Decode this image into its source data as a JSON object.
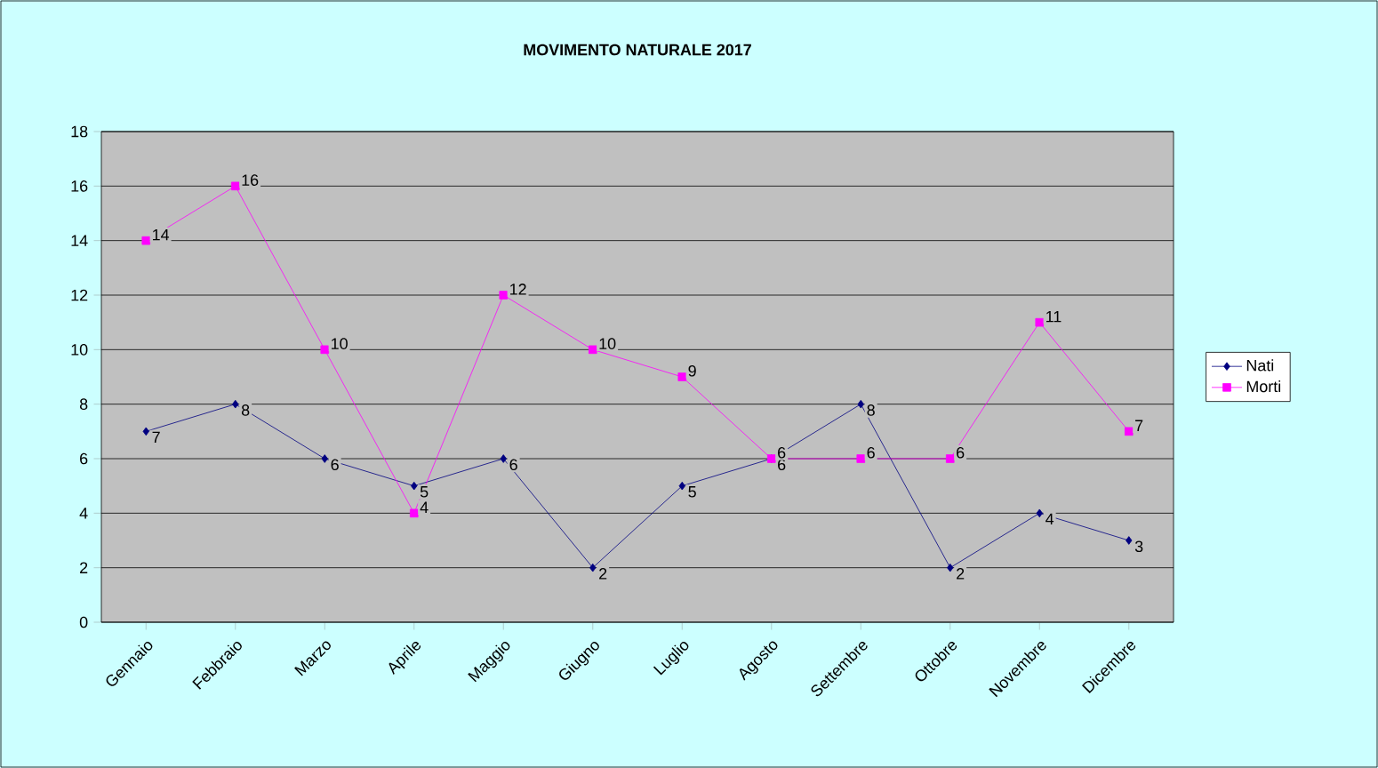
{
  "chart_data": {
    "type": "line",
    "title": "MOVIMENTO NATURALE  2017",
    "categories": [
      "Gennaio",
      "Febbraio",
      "Marzo",
      "Aprile",
      "Maggio",
      "Giugno",
      "Luglio",
      "Agosto",
      "Settembre",
      "Ottobre",
      "Novembre",
      "Dicembre"
    ],
    "series": [
      {
        "name": "Nati",
        "color": "#000080",
        "marker": "diamond",
        "values": [
          7,
          8,
          6,
          5,
          6,
          2,
          5,
          6,
          8,
          2,
          4,
          3
        ]
      },
      {
        "name": "Morti",
        "color": "#ff00ff",
        "marker": "square",
        "values": [
          14,
          16,
          10,
          4,
          12,
          10,
          9,
          6,
          6,
          6,
          11,
          7
        ]
      }
    ],
    "ylim": [
      0,
      18
    ],
    "yticks": [
      0,
      2,
      4,
      6,
      8,
      10,
      12,
      14,
      16,
      18
    ],
    "grid": "y",
    "legend": "right",
    "data_labels": true,
    "line_style": "solid"
  }
}
